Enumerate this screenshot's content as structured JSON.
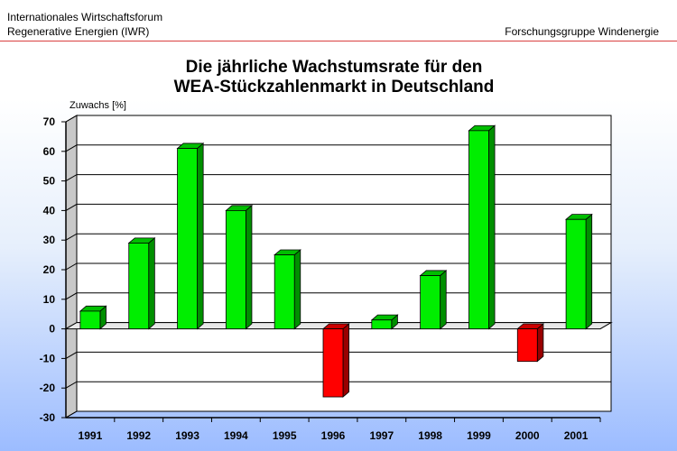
{
  "header": {
    "org_line1": "Internationales Wirtschaftsforum",
    "org_line2": "Regenerative Energien (IWR)",
    "group": "Forschungsgruppe Windenergie"
  },
  "colors": {
    "positive": "#00ee00",
    "negative": "#ff0000",
    "header_rule": "#d94040"
  },
  "chart_data": {
    "type": "bar",
    "title": [
      "Die jährliche Wachstumsrate für den",
      "WEA-Stückzahlenmarkt in Deutschland"
    ],
    "ylabel": "Zuwachs [%]",
    "xlabel": "",
    "ylim": [
      -30,
      70
    ],
    "yticks": [
      70,
      60,
      50,
      40,
      30,
      20,
      10,
      0,
      -10,
      -20,
      -30
    ],
    "grid": true,
    "style": "3d",
    "categories": [
      "1991",
      "1992",
      "1993",
      "1994",
      "1995",
      "1996",
      "1997",
      "1998",
      "1999",
      "2000",
      "2001"
    ],
    "values": [
      6,
      29,
      61,
      40,
      25,
      -23,
      3,
      18,
      67,
      -11,
      37
    ]
  }
}
